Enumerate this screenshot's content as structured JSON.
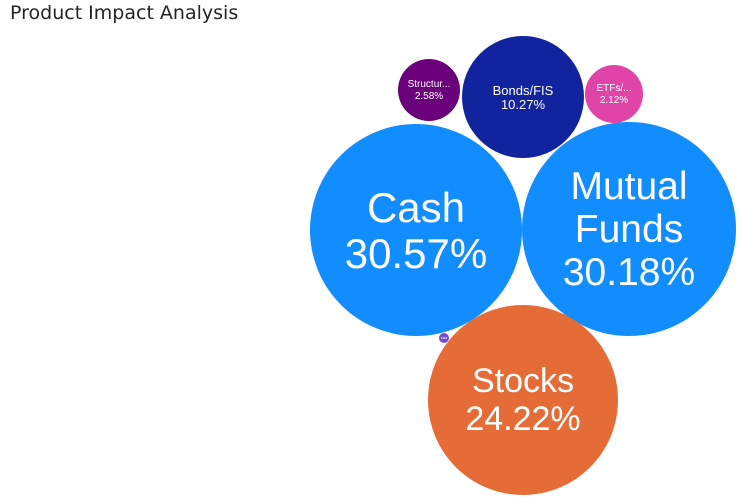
{
  "title": "Product Impact Analysis",
  "chart_data": {
    "type": "bubble",
    "title": "Product Impact Analysis",
    "series": [
      {
        "name": "Cash",
        "label": "Cash",
        "value": 30.57,
        "value_label": "30.57%",
        "color": "#118DFF"
      },
      {
        "name": "Mutual Funds",
        "label": "Mutual\nFunds",
        "value": 30.18,
        "value_label": "30.18%",
        "color": "#118DFF"
      },
      {
        "name": "Stocks",
        "label": "Stocks",
        "value": 24.22,
        "value_label": "24.22%",
        "color": "#E66C37"
      },
      {
        "name": "Bonds/FIS",
        "label": "Bonds/FIS",
        "value": 10.27,
        "value_label": "10.27%",
        "color": "#12239E"
      },
      {
        "name": "Structured",
        "label": "Structur...",
        "value": 2.58,
        "value_label": "2.58%",
        "color": "#6B007B"
      },
      {
        "name": "ETFs",
        "label": "ETFs/...",
        "value": 2.12,
        "value_label": "2.12%",
        "color": "#E044A7"
      },
      {
        "name": "",
        "label": "",
        "value": 0.06,
        "value_label": "",
        "color": "#744EC2"
      }
    ]
  }
}
